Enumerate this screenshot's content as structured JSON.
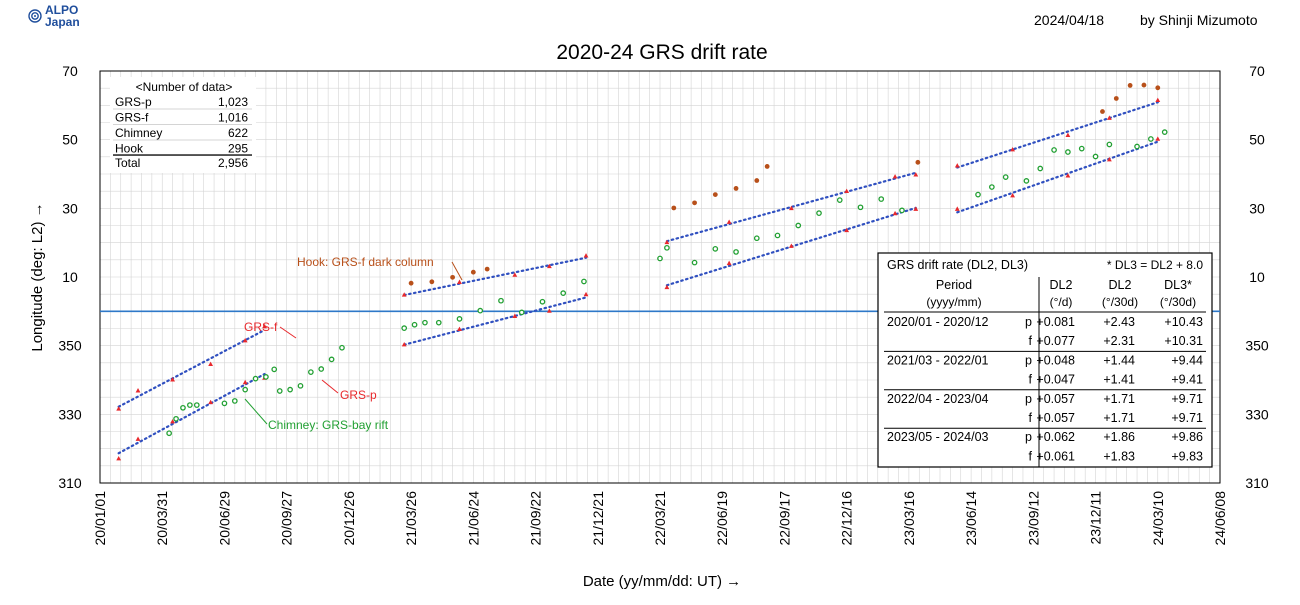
{
  "header": {
    "logo_line1": "ALPO",
    "logo_line2": "Japan",
    "date": "2024/04/18",
    "author": "by Shinji Mizumoto"
  },
  "colors": {
    "grs_f": "#e8282c",
    "grs_p": "#e8282c",
    "trend": "#3050c0",
    "chimney": "#22a033",
    "hook": "#b8501a",
    "equator_line": "#2e78c8",
    "grid": "#d4d4d4",
    "logo": "#1f4e9c"
  },
  "chart_data": {
    "type": "scatter",
    "title": "2020-24 GRS drift rate",
    "xlabel": "Date (yy/mm/dd: UT) →",
    "ylabel": "Longitude (deg: L2) →",
    "x_ticks": [
      "20/01/01",
      "20/03/31",
      "20/06/29",
      "20/09/27",
      "20/12/26",
      "21/03/26",
      "21/06/24",
      "21/09/22",
      "21/12/21",
      "22/03/21",
      "22/06/19",
      "22/09/17",
      "22/12/16",
      "23/03/16",
      "23/06/14",
      "23/09/12",
      "23/12/11",
      "24/03/10",
      "24/06/08"
    ],
    "y_ticks_left": [
      "310",
      "330",
      "350",
      "10",
      "30",
      "50",
      "70"
    ],
    "y_ticks_right": [
      "310",
      "330",
      "350",
      "10",
      "30",
      "50",
      "70"
    ],
    "ylim": [
      310,
      430
    ],
    "xlim": [
      "20/01/01",
      "24/06/08"
    ],
    "grid": true,
    "reference_line_longitude": 360,
    "series": [
      {
        "name": "GRS-f",
        "color_key": "grs_f",
        "marker": "triangle",
        "segments": [
          {
            "x": [
              27,
              55,
              105,
              160,
              210,
              238
            ],
            "y": [
              331.6,
              336.9,
              340.1,
              344.6,
              351.5,
              355.6
            ]
          },
          {
            "x": [
              440,
              520,
              600,
              650,
              703
            ],
            "y": [
              4.8,
              8.5,
              10.6,
              13.1,
              16.2
            ]
          },
          {
            "x": [
              820,
              910,
              1000,
              1080,
              1150,
              1180
            ],
            "y": [
              20.1,
              26.0,
              30.0,
              35.0,
              39.2,
              39.8
            ]
          },
          {
            "x": [
              1240,
              1320,
              1400,
              1460,
              1530
            ],
            "y": [
              42.4,
              47.1,
              51.3,
              56.3,
              61.5
            ]
          }
        ]
      },
      {
        "name": "GRS-p",
        "color_key": "grs_p",
        "marker": "triangle",
        "segments": [
          {
            "x": [
              27,
              55,
              105,
              160,
              210,
              238
            ],
            "y": [
              317.1,
              322.8,
              327.9,
              333.5,
              339.3,
              340.6
            ]
          },
          {
            "x": [
              440,
              520,
              600,
              650,
              703
            ],
            "y": [
              350.3,
              354.8,
              358.6,
              360.1,
              364.9
            ]
          },
          {
            "x": [
              820,
              910,
              1000,
              1080,
              1150,
              1180
            ],
            "y": [
              7.0,
              14.0,
              19.0,
              23.6,
              28.5,
              29.8
            ]
          },
          {
            "x": [
              1240,
              1320,
              1400,
              1460,
              1530
            ],
            "y": [
              29.8,
              33.7,
              39.5,
              44.2,
              50.2
            ]
          }
        ]
      },
      {
        "name": "Chimney",
        "color_key": "chimney",
        "marker": "circle",
        "segments": [
          {
            "x": [
              100,
              110,
              120,
              130,
              140
            ],
            "y": [
              324.5,
              328.7,
              331.9,
              332.7,
              332.7
            ]
          },
          {
            "x": [
              180,
              195,
              210,
              225,
              240,
              252
            ],
            "y": [
              333.2,
              333.9,
              337.2,
              340.4,
              340.9,
              343.1
            ]
          },
          {
            "x": [
              260,
              275,
              290,
              305,
              320,
              335,
              350
            ],
            "y": [
              336.8,
              337.2,
              338.3,
              342.3,
              343.2,
              346.0,
              349.4
            ]
          },
          {
            "x": [
              440,
              455,
              470
            ],
            "y": [
              355.1,
              356.1,
              356.7
            ]
          },
          {
            "x": [
              490,
              520,
              550,
              580
            ],
            "y": [
              356.7,
              357.8,
              360.2,
              363.1
            ]
          },
          {
            "x": [
              610,
              640,
              670,
              700
            ],
            "y": [
              359.7,
              362.8,
              365.3,
              368.7
            ]
          },
          {
            "x": [
              810,
              820
            ],
            "y": [
              15.4,
              18.5
            ]
          },
          {
            "x": [
              860,
              890,
              920,
              950,
              980,
              1010,
              1040,
              1070
            ],
            "y": [
              14.2,
              18.2,
              17.3,
              21.3,
              22.1,
              25.0,
              28.6,
              32.4
            ]
          },
          {
            "x": [
              1100,
              1130,
              1160
            ],
            "y": [
              30.3,
              32.7,
              29.4
            ]
          },
          {
            "x": [
              1270,
              1290,
              1310
            ],
            "y": [
              34.0,
              36.2,
              39.1
            ]
          },
          {
            "x": [
              1340,
              1360,
              1380,
              1400,
              1420,
              1440,
              1460
            ],
            "y": [
              38.0,
              41.6,
              47.0,
              46.4,
              47.4,
              45.1,
              48.6
            ]
          },
          {
            "x": [
              1500,
              1520,
              1540
            ],
            "y": [
              48.0,
              50.2,
              52.2
            ]
          }
        ]
      },
      {
        "name": "Hook",
        "color_key": "hook",
        "marker": "circle",
        "segments": [
          {
            "x": [
              450,
              480,
              510,
              540,
              560
            ],
            "y": [
              8.2,
              8.6,
              9.9,
              11.4,
              12.3
            ]
          },
          {
            "x": [
              830,
              860,
              890,
              920,
              950,
              965
            ],
            "y": [
              30.1,
              31.6,
              34.0,
              35.8,
              38.1,
              42.2
            ]
          },
          {
            "x": [
              1183
            ],
            "y": [
              43.4
            ]
          },
          {
            "x": [
              1450,
              1470,
              1490
            ],
            "y": [
              58.2,
              62.0,
              65.8
            ]
          },
          {
            "x": [
              1510,
              1530
            ],
            "y": [
              65.9,
              65.1
            ]
          }
        ]
      }
    ],
    "annotations": [
      {
        "text": "GRS-f",
        "color_key": "grs_f"
      },
      {
        "text": "GRS-p",
        "color_key": "grs_p"
      },
      {
        "text": "Hook: GRS-f dark column",
        "color_key": "hook"
      },
      {
        "text": "Chimney: GRS-bay rift",
        "color_key": "chimney"
      }
    ],
    "count_table": {
      "title": "<Number of data>",
      "rows": [
        {
          "label": "GRS-p",
          "value": "1,023"
        },
        {
          "label": "GRS-f",
          "value": "1,016"
        },
        {
          "label": "Chimney",
          "value": "622"
        },
        {
          "label": "Hook",
          "value": "295"
        }
      ],
      "total": {
        "label": "Total",
        "value": "2,956"
      }
    },
    "drift_table": {
      "title": "GRS drift rate (DL2, DL3)",
      "note": "* DL3 = DL2 + 8.0",
      "headers": [
        {
          "line1": "Period",
          "line2": "(yyyy/mm)"
        },
        {
          "line1": "DL2",
          "line2": "(°/d)"
        },
        {
          "line1": "DL2",
          "line2": "(°/30d)"
        },
        {
          "line1": "DL3*",
          "line2": "(°/30d)"
        }
      ],
      "groups": [
        {
          "period": "2020/01 - 2020/12",
          "rows": [
            {
              "kind": "p",
              "dl2_d": "+0.081",
              "dl2_30d": "+2.43",
              "dl3_30d": "+10.43"
            },
            {
              "kind": "f",
              "dl2_d": "+0.077",
              "dl2_30d": "+2.31",
              "dl3_30d": "+10.31"
            }
          ]
        },
        {
          "period": "2021/03 - 2022/01",
          "rows": [
            {
              "kind": "p",
              "dl2_d": "+0.048",
              "dl2_30d": "+1.44",
              "dl3_30d": "+9.44"
            },
            {
              "kind": "f",
              "dl2_d": "+0.047",
              "dl2_30d": "+1.41",
              "dl3_30d": "+9.41"
            }
          ]
        },
        {
          "period": "2022/04 - 2023/04",
          "rows": [
            {
              "kind": "p",
              "dl2_d": "+0.057",
              "dl2_30d": "+1.71",
              "dl3_30d": "+9.71"
            },
            {
              "kind": "f",
              "dl2_d": "+0.057",
              "dl2_30d": "+1.71",
              "dl3_30d": "+9.71"
            }
          ]
        },
        {
          "period": "2023/05 - 2024/03",
          "rows": [
            {
              "kind": "p",
              "dl2_d": "+0.062",
              "dl2_30d": "+1.86",
              "dl3_30d": "+9.86"
            },
            {
              "kind": "f",
              "dl2_d": "+0.061",
              "dl2_30d": "+1.83",
              "dl3_30d": "+9.83"
            }
          ]
        }
      ]
    }
  }
}
